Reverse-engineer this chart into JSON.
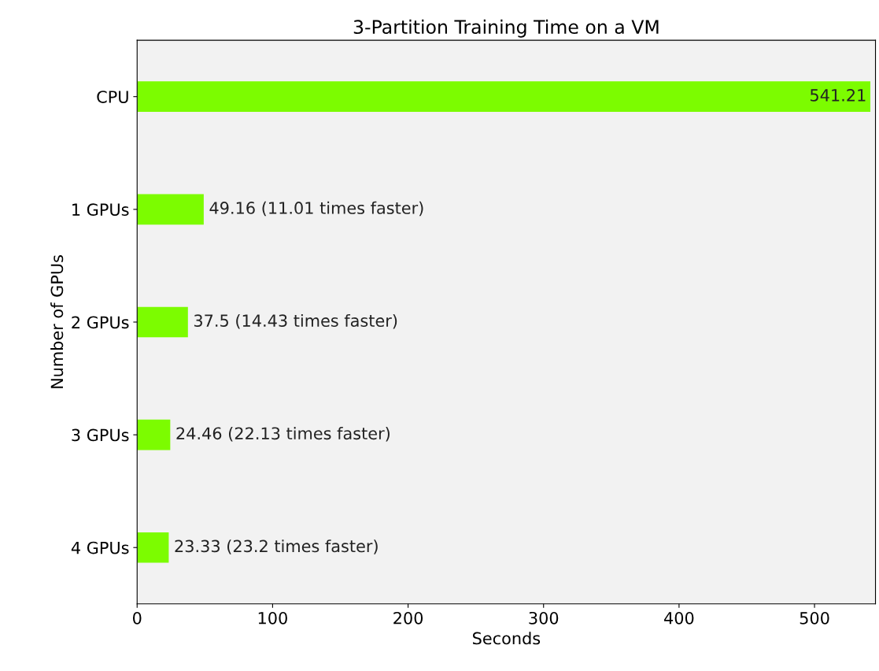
{
  "chart_data": {
    "type": "bar",
    "orientation": "horizontal",
    "title": "3-Partition Training Time on a VM",
    "xlabel": "Seconds",
    "ylabel": "Number of GPUs",
    "categories": [
      "CPU",
      "1 GPUs",
      "2 GPUs",
      "3 GPUs",
      "4 GPUs"
    ],
    "values": [
      541.21,
      49.16,
      37.5,
      24.46,
      23.33
    ],
    "value_labels": [
      "541.21",
      "49.16 (11.01 times faster)",
      "37.5 (14.43 times faster)",
      "24.46 (22.13 times faster)",
      "23.33 (23.2 times faster)"
    ],
    "color": "#7cfc00",
    "xlim": [
      0,
      545
    ],
    "xticks": [
      0,
      100,
      200,
      300,
      400,
      500
    ],
    "grid": false
  }
}
